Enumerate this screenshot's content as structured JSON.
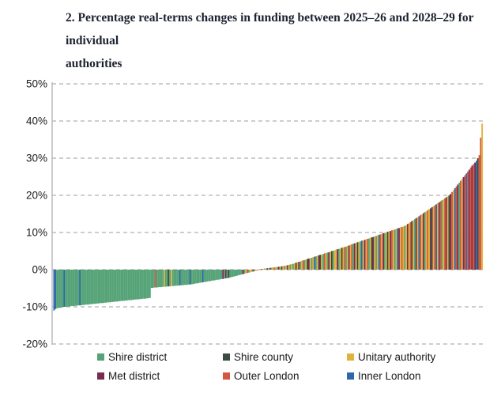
{
  "header": {
    "line1": "2. Percentage real-terms changes in funding between 2025–26 and 2028–29 for individual",
    "line2": "authorities"
  },
  "chart_data": {
    "type": "bar",
    "title": "2. Percentage real-terms changes in funding between 2025–26 and 2028–29 for individual authorities",
    "unit": "percent real-terms change in funding, 2025–26 to 2028–29",
    "ylim": [
      -20,
      50
    ],
    "yticks": [
      "50%",
      "40%",
      "30%",
      "20%",
      "10%",
      "0%",
      "-10%",
      "-20%"
    ],
    "ytick_values": [
      50,
      40,
      30,
      20,
      10,
      0,
      -10,
      -20
    ],
    "grid": "horizontal dashed",
    "legend_position": "bottom",
    "grid_color": "#bdbdbd",
    "axis_color": "#b5b5b5",
    "types": [
      {
        "name": "Shire district",
        "color": "#55a377"
      },
      {
        "name": "Shire county",
        "color": "#3a4d42"
      },
      {
        "name": "Unitary authority",
        "color": "#e3b23d"
      },
      {
        "name": "Met district",
        "color": "#782d50"
      },
      {
        "name": "Outer London",
        "color": "#d2593f"
      },
      {
        "name": "Inner London",
        "color": "#2f68aa"
      }
    ],
    "bars_note": "each bar = one authority, sorted ascending; values are [percent_change, type_index]",
    "bars": [
      [
        -11,
        5
      ],
      [
        -10.6,
        5
      ],
      [
        -10.4,
        0
      ],
      [
        -10.3,
        0
      ],
      [
        -10.3,
        0
      ],
      [
        -10.2,
        0
      ],
      [
        -10.1,
        0
      ],
      [
        -10,
        5
      ],
      [
        -10,
        0
      ],
      [
        -10,
        0
      ],
      [
        -9.9,
        0
      ],
      [
        -9.9,
        0
      ],
      [
        -9.8,
        0
      ],
      [
        -9.8,
        0
      ],
      [
        -9.8,
        0
      ],
      [
        -9.7,
        0
      ],
      [
        -9.7,
        0
      ],
      [
        -9.6,
        0
      ],
      [
        -9.6,
        5
      ],
      [
        -9.6,
        0
      ],
      [
        -9.5,
        0
      ],
      [
        -9.5,
        0
      ],
      [
        -9.4,
        0
      ],
      [
        -9.4,
        0
      ],
      [
        -9.4,
        0
      ],
      [
        -9.3,
        0
      ],
      [
        -9.3,
        0
      ],
      [
        -9.2,
        0
      ],
      [
        -9.2,
        0
      ],
      [
        -9.2,
        0
      ],
      [
        -9.1,
        0
      ],
      [
        -9.1,
        0
      ],
      [
        -9,
        0
      ],
      [
        -9,
        0
      ],
      [
        -9,
        0
      ],
      [
        -8.9,
        0
      ],
      [
        -8.9,
        0
      ],
      [
        -8.8,
        0
      ],
      [
        -8.8,
        0
      ],
      [
        -8.8,
        0
      ],
      [
        -8.7,
        0
      ],
      [
        -8.7,
        0
      ],
      [
        -8.6,
        0
      ],
      [
        -8.6,
        0
      ],
      [
        -8.6,
        0
      ],
      [
        -8.5,
        0
      ],
      [
        -8.5,
        0
      ],
      [
        -8.4,
        0
      ],
      [
        -8.4,
        0
      ],
      [
        -8.4,
        0
      ],
      [
        -8.3,
        0
      ],
      [
        -8.3,
        0
      ],
      [
        -8.2,
        0
      ],
      [
        -8.2,
        0
      ],
      [
        -8.2,
        0
      ],
      [
        -8.1,
        0
      ],
      [
        -8.1,
        0
      ],
      [
        -8,
        0
      ],
      [
        -8,
        0
      ],
      [
        -8,
        0
      ],
      [
        -7.9,
        0
      ],
      [
        -7.9,
        0
      ],
      [
        -7.8,
        0
      ],
      [
        -7.8,
        0
      ],
      [
        -7.8,
        0
      ],
      [
        -7.7,
        0
      ],
      [
        -7.7,
        0
      ],
      [
        -7.6,
        0
      ],
      [
        -4.9,
        0
      ],
      [
        -4.9,
        0
      ],
      [
        -4.8,
        0
      ],
      [
        -4.8,
        4
      ],
      [
        -4.8,
        0
      ],
      [
        -4.7,
        0
      ],
      [
        -4.7,
        0
      ],
      [
        -4.7,
        0
      ],
      [
        -4.6,
        0
      ],
      [
        -4.6,
        2
      ],
      [
        -4.6,
        0
      ],
      [
        -4.5,
        0
      ],
      [
        -4.5,
        1
      ],
      [
        -4.5,
        0
      ],
      [
        -4.4,
        2
      ],
      [
        -4.4,
        0
      ],
      [
        -4.4,
        0
      ],
      [
        -4.3,
        0
      ],
      [
        -4.3,
        0
      ],
      [
        -4.3,
        0
      ],
      [
        -4.2,
        5
      ],
      [
        -4.2,
        0
      ],
      [
        -4.2,
        0
      ],
      [
        -4.1,
        0
      ],
      [
        -4.1,
        0
      ],
      [
        -4.1,
        0
      ],
      [
        -4,
        0
      ],
      [
        -4,
        5
      ],
      [
        -3.9,
        0
      ],
      [
        -3.9,
        0
      ],
      [
        -3.8,
        0
      ],
      [
        -3.7,
        0
      ],
      [
        -3.7,
        0
      ],
      [
        -3.6,
        0
      ],
      [
        -3.5,
        0
      ],
      [
        -3.5,
        0
      ],
      [
        -3.4,
        5
      ],
      [
        -3.3,
        0
      ],
      [
        -3.3,
        0
      ],
      [
        -3.2,
        0
      ],
      [
        -3.1,
        0
      ],
      [
        -3.1,
        0
      ],
      [
        -3,
        0
      ],
      [
        -2.9,
        0
      ],
      [
        -2.9,
        0
      ],
      [
        -2.8,
        0
      ],
      [
        -2.7,
        0
      ],
      [
        -2.7,
        0
      ],
      [
        -2.6,
        0
      ],
      [
        -2.5,
        0
      ],
      [
        -2.5,
        3
      ],
      [
        -2.4,
        0
      ],
      [
        -2.3,
        3
      ],
      [
        -2.3,
        0
      ],
      [
        -2.2,
        1
      ],
      [
        -2.1,
        0
      ],
      [
        -2,
        0
      ],
      [
        -1.9,
        0
      ],
      [
        -1.8,
        0
      ],
      [
        -1.7,
        0
      ],
      [
        -1.6,
        0
      ],
      [
        -1.5,
        0
      ],
      [
        -1.4,
        0
      ],
      [
        -1.3,
        0
      ],
      [
        -1.2,
        3
      ],
      [
        -1.1,
        0
      ],
      [
        -1,
        2
      ],
      [
        -0.9,
        4
      ],
      [
        -0.8,
        0
      ],
      [
        -0.7,
        2
      ],
      [
        -0.6,
        2
      ],
      [
        -0.5,
        3
      ],
      [
        -0.4,
        0
      ],
      [
        -0.3,
        2
      ],
      [
        -0.2,
        4
      ],
      [
        -0.1,
        2
      ],
      [
        0.1,
        2
      ],
      [
        0.2,
        3
      ],
      [
        0.2,
        2
      ],
      [
        0.3,
        0
      ],
      [
        0.3,
        2
      ],
      [
        0.4,
        1
      ],
      [
        0.4,
        2
      ],
      [
        0.5,
        3
      ],
      [
        0.5,
        0
      ],
      [
        0.6,
        2
      ],
      [
        0.6,
        4
      ],
      [
        0.7,
        2
      ],
      [
        0.7,
        0
      ],
      [
        0.8,
        3
      ],
      [
        0.8,
        2
      ],
      [
        0.9,
        1
      ],
      [
        1,
        2
      ],
      [
        1,
        0
      ],
      [
        1.1,
        2
      ],
      [
        1.2,
        3
      ],
      [
        1.3,
        2
      ],
      [
        1.4,
        0
      ],
      [
        1.5,
        2
      ],
      [
        1.6,
        0
      ],
      [
        1.7,
        2
      ],
      [
        1.9,
        1
      ],
      [
        2,
        2
      ],
      [
        2.1,
        3
      ],
      [
        2.2,
        0
      ],
      [
        2.4,
        2
      ],
      [
        2.5,
        4
      ],
      [
        2.6,
        0
      ],
      [
        2.7,
        2
      ],
      [
        2.9,
        1
      ],
      [
        3,
        3
      ],
      [
        3.1,
        2
      ],
      [
        3.2,
        0
      ],
      [
        3.4,
        2
      ],
      [
        3.5,
        5
      ],
      [
        3.6,
        0
      ],
      [
        3.7,
        2
      ],
      [
        3.9,
        3
      ],
      [
        4,
        1
      ],
      [
        4.1,
        2
      ],
      [
        4.2,
        0
      ],
      [
        4.4,
        4
      ],
      [
        4.5,
        2
      ],
      [
        4.6,
        0
      ],
      [
        4.7,
        3
      ],
      [
        4.9,
        2
      ],
      [
        5,
        1
      ],
      [
        5.1,
        0
      ],
      [
        5.2,
        2
      ],
      [
        5.4,
        2
      ],
      [
        5.5,
        3
      ],
      [
        5.6,
        0
      ],
      [
        5.7,
        2
      ],
      [
        5.9,
        1
      ],
      [
        6,
        2
      ],
      [
        6.1,
        4
      ],
      [
        6.2,
        0
      ],
      [
        6.4,
        2
      ],
      [
        6.5,
        3
      ],
      [
        6.7,
        2
      ],
      [
        6.8,
        4
      ],
      [
        7,
        0
      ],
      [
        7.1,
        3
      ],
      [
        7.2,
        2
      ],
      [
        7.4,
        1
      ],
      [
        7.5,
        2
      ],
      [
        7.6,
        0
      ],
      [
        7.8,
        5
      ],
      [
        7.9,
        2
      ],
      [
        8,
        3
      ],
      [
        8.2,
        2
      ],
      [
        8.3,
        4
      ],
      [
        8.4,
        0
      ],
      [
        8.6,
        2
      ],
      [
        8.7,
        1
      ],
      [
        8.8,
        3
      ],
      [
        9,
        2
      ],
      [
        9.1,
        0
      ],
      [
        9.2,
        2
      ],
      [
        9.4,
        5
      ],
      [
        9.5,
        4
      ],
      [
        9.6,
        2
      ],
      [
        9.8,
        3
      ],
      [
        9.9,
        0
      ],
      [
        10,
        2
      ],
      [
        10.2,
        1
      ],
      [
        10.3,
        2
      ],
      [
        10.4,
        3
      ],
      [
        10.6,
        4
      ],
      [
        10.7,
        2
      ],
      [
        10.8,
        0
      ],
      [
        11,
        2
      ],
      [
        11.1,
        5
      ],
      [
        11.2,
        3
      ],
      [
        11.4,
        2
      ],
      [
        11.5,
        4
      ],
      [
        11.6,
        2
      ],
      [
        11.8,
        0
      ],
      [
        12,
        2
      ],
      [
        12.3,
        3
      ],
      [
        12.5,
        2
      ],
      [
        12.8,
        4
      ],
      [
        13.1,
        1
      ],
      [
        13.3,
        2
      ],
      [
        13.6,
        0
      ],
      [
        13.9,
        3
      ],
      [
        14.1,
        2
      ],
      [
        14.4,
        5
      ],
      [
        14.7,
        4
      ],
      [
        14.9,
        2
      ],
      [
        15.2,
        3
      ],
      [
        15.5,
        0
      ],
      [
        15.7,
        2
      ],
      [
        16,
        4
      ],
      [
        16.3,
        2
      ],
      [
        16.5,
        1
      ],
      [
        16.8,
        3
      ],
      [
        17.1,
        2
      ],
      [
        17.3,
        4
      ],
      [
        17.6,
        5
      ],
      [
        17.9,
        2
      ],
      [
        18.1,
        3
      ],
      [
        18.4,
        4
      ],
      [
        18.7,
        0
      ],
      [
        18.9,
        2
      ],
      [
        19.2,
        4
      ],
      [
        19.5,
        3
      ],
      [
        19.7,
        2
      ],
      [
        20,
        1
      ],
      [
        20.4,
        3
      ],
      [
        20.9,
        4
      ],
      [
        21.4,
        2
      ],
      [
        21.9,
        5
      ],
      [
        22.4,
        4
      ],
      [
        22.9,
        3
      ],
      [
        23.4,
        0
      ],
      [
        23.9,
        4
      ],
      [
        24.4,
        2
      ],
      [
        24.9,
        3
      ],
      [
        25.4,
        4
      ],
      [
        25.9,
        5
      ],
      [
        26.4,
        4
      ],
      [
        26.9,
        3
      ],
      [
        27.5,
        4
      ],
      [
        28,
        3
      ],
      [
        28.4,
        4
      ],
      [
        28.8,
        3
      ],
      [
        29.3,
        5
      ],
      [
        30,
        1
      ],
      [
        30.8,
        4
      ],
      [
        35.5,
        4
      ],
      [
        39.3,
        2
      ]
    ]
  },
  "legend": {
    "items": [
      "Shire district",
      "Shire county",
      "Unitary authority",
      "Met district",
      "Outer London",
      "Inner London"
    ]
  }
}
